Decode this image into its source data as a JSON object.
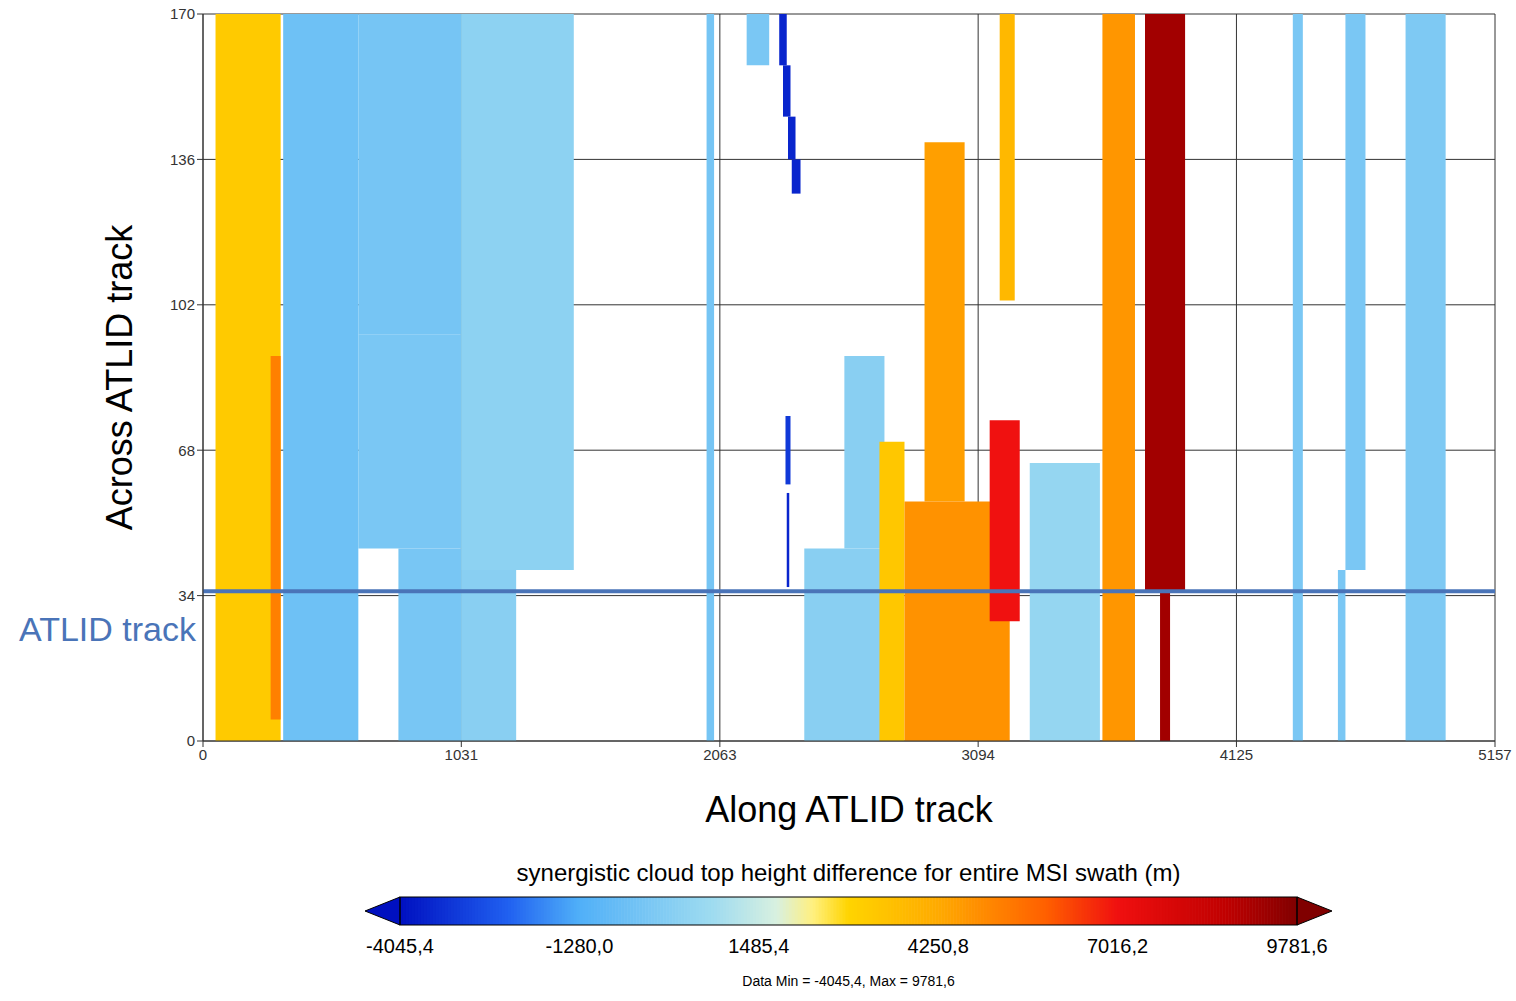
{
  "chart_data": {
    "type": "heatmap",
    "x_label": "Along ATLID track",
    "y_label": "Across ATLID track",
    "xlim": [
      0,
      5157
    ],
    "xticks": [
      0,
      1031,
      2063,
      3094,
      4125,
      5157
    ],
    "ylim": [
      0,
      170
    ],
    "yticks": [
      0,
      34,
      68,
      102,
      136,
      170
    ],
    "grid": true,
    "reference_line": {
      "y": 35,
      "label": "ATLID track",
      "color": "#4a74b8"
    },
    "cells": [
      {
        "x0": 50,
        "x1": 310,
        "y0": 0,
        "y1": 170,
        "value": 3200
      },
      {
        "x0": 270,
        "x1": 310,
        "y0": 5,
        "y1": 90,
        "value": 5200
      },
      {
        "x0": 320,
        "x1": 620,
        "y0": 0,
        "y1": 170,
        "value": -500
      },
      {
        "x0": 620,
        "x1": 1030,
        "y0": 95,
        "y1": 170,
        "value": -300
      },
      {
        "x0": 620,
        "x1": 1030,
        "y0": 45,
        "y1": 95,
        "value": -200
      },
      {
        "x0": 780,
        "x1": 1030,
        "y0": 0,
        "y1": 45,
        "value": -250
      },
      {
        "x0": 1030,
        "x1": 1480,
        "y0": 40,
        "y1": 170,
        "value": 300
      },
      {
        "x0": 1030,
        "x1": 1250,
        "y0": 0,
        "y1": 40,
        "value": 200
      },
      {
        "x0": 2010,
        "x1": 2040,
        "y0": 0,
        "y1": 170,
        "value": -300
      },
      {
        "x0": 2170,
        "x1": 2260,
        "y0": 158,
        "y1": 170,
        "value": -200
      },
      {
        "x0": 2300,
        "x1": 2330,
        "y0": 158,
        "y1": 170,
        "value": -3600
      },
      {
        "x0": 2315,
        "x1": 2345,
        "y0": 146,
        "y1": 158,
        "value": -3600
      },
      {
        "x0": 2335,
        "x1": 2365,
        "y0": 136,
        "y1": 146,
        "value": -3600
      },
      {
        "x0": 2350,
        "x1": 2385,
        "y0": 128,
        "y1": 136,
        "value": -3600
      },
      {
        "x0": 2325,
        "x1": 2345,
        "y0": 60,
        "y1": 76,
        "value": -3200
      },
      {
        "x0": 2330,
        "x1": 2340,
        "y0": 36,
        "y1": 58,
        "value": -3600
      },
      {
        "x0": 2400,
        "x1": 2780,
        "y0": 0,
        "y1": 45,
        "value": 200
      },
      {
        "x0": 2560,
        "x1": 2720,
        "y0": 45,
        "y1": 90,
        "value": 200
      },
      {
        "x0": 2700,
        "x1": 2800,
        "y0": 0,
        "y1": 70,
        "value": 3300
      },
      {
        "x0": 2880,
        "x1": 3040,
        "y0": 56,
        "y1": 140,
        "value": 4500
      },
      {
        "x0": 2800,
        "x1": 3220,
        "y0": 0,
        "y1": 56,
        "value": 4800
      },
      {
        "x0": 3140,
        "x1": 3260,
        "y0": 28,
        "y1": 75,
        "value": 7000
      },
      {
        "x0": 3180,
        "x1": 3240,
        "y0": 103,
        "y1": 170,
        "value": 3800
      },
      {
        "x0": 3300,
        "x1": 3580,
        "y0": 0,
        "y1": 65,
        "value": 500
      },
      {
        "x0": 3590,
        "x1": 3720,
        "y0": 0,
        "y1": 170,
        "value": 4700
      },
      {
        "x0": 3760,
        "x1": 3920,
        "y0": 35,
        "y1": 170,
        "value": 9200
      },
      {
        "x0": 3820,
        "x1": 3860,
        "y0": 0,
        "y1": 35,
        "value": 9200
      },
      {
        "x0": 4350,
        "x1": 4390,
        "y0": 0,
        "y1": 170,
        "value": -200
      },
      {
        "x0": 4530,
        "x1": 4560,
        "y0": 0,
        "y1": 40,
        "value": -200
      },
      {
        "x0": 4560,
        "x1": 4640,
        "y0": 40,
        "y1": 170,
        "value": -200
      },
      {
        "x0": 4800,
        "x1": 4960,
        "y0": 0,
        "y1": 170,
        "value": -100
      }
    ],
    "colorbar": {
      "label": "synergistic cloud top height difference for entire MSI swath (m)",
      "range": [
        -4045.4,
        9781.6
      ],
      "ticks": [
        {
          "value": -4045.4,
          "label": "-4045,4"
        },
        {
          "value": -1280.0,
          "label": "-1280,0"
        },
        {
          "value": 1485.4,
          "label": "1485,4"
        },
        {
          "value": 4250.8,
          "label": "4250,8"
        },
        {
          "value": 7016.2,
          "label": "7016,2"
        },
        {
          "value": 9781.6,
          "label": "9781,6"
        }
      ]
    },
    "annotations": [
      "Data Min = -4045,4, Max = 9781,6"
    ]
  }
}
